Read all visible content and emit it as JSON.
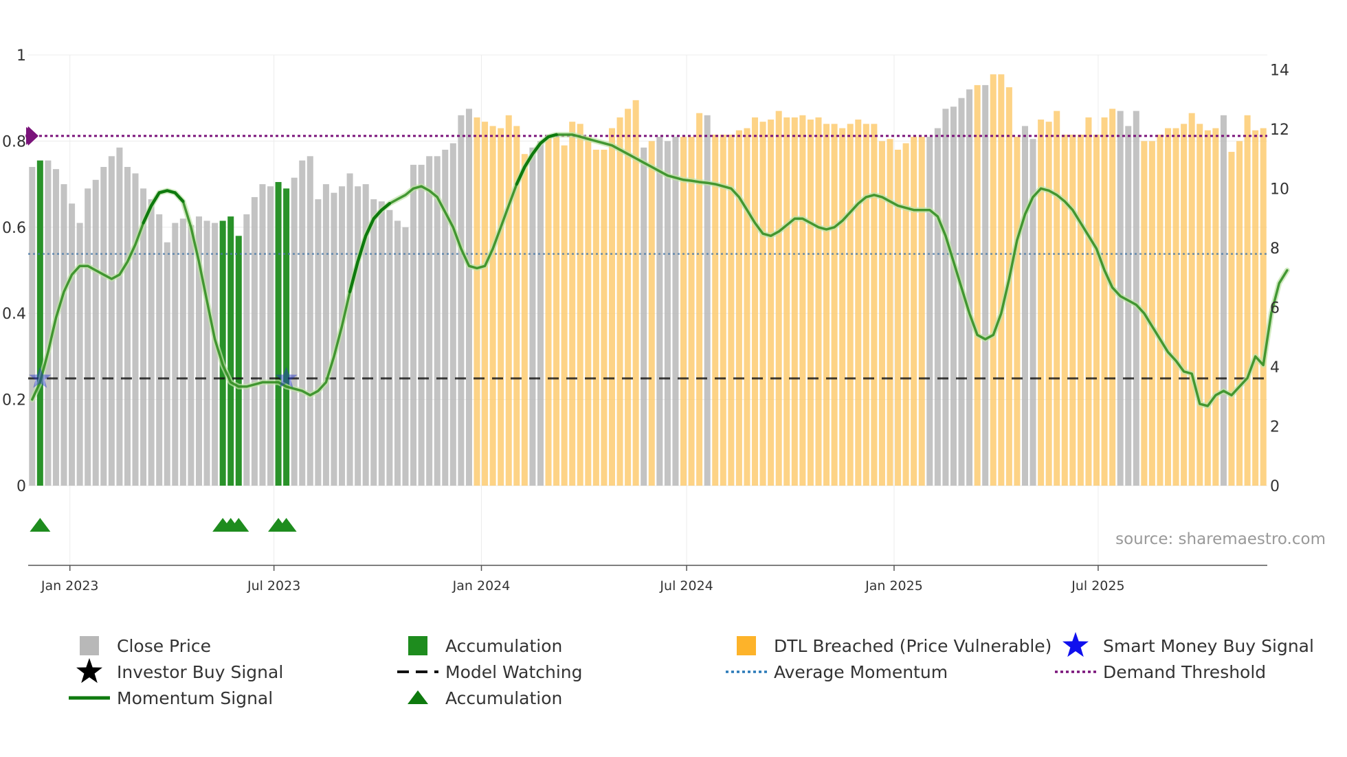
{
  "chart_data": {
    "type": "bar+line",
    "title": "",
    "source": "source: sharemaestro.com",
    "x_start": "2022-11-25",
    "x_end": "2025-11-28",
    "x_ticks": [
      "Jan 2023",
      "Jul 2023",
      "Jan 2024",
      "Jul 2024",
      "Jan 2025",
      "Jul 2025"
    ],
    "left_axis": {
      "ylim": [
        0,
        1
      ],
      "ticks": [
        "0",
        "0.2",
        "0.4",
        "0.6",
        "0.8",
        "1"
      ]
    },
    "right_axis": {
      "ylim": [
        0,
        14.5
      ],
      "ticks": [
        "0",
        "2",
        "4",
        "6",
        "8",
        "10",
        "12",
        "14"
      ]
    },
    "colors": {
      "close": "#b8b8b8",
      "accumulation": "#1e8c1e",
      "dtl": "#fcc868",
      "momentum": "#2a8a1a",
      "momentum_strong": "#0e7a0e",
      "average_momentum": "#4a7aa8",
      "demand_threshold": "#7a137a",
      "model_watching": "#111111",
      "smart_money": "#2233cc",
      "triangle": "#1e8c1e"
    },
    "close_price": [
      0.74,
      0.755,
      0.755,
      0.735,
      0.7,
      0.655,
      0.61,
      0.69,
      0.71,
      0.74,
      0.765,
      0.785,
      0.74,
      0.725,
      0.69,
      0.665,
      0.63,
      0.565,
      0.61,
      0.62,
      0.605,
      0.625,
      0.615,
      0.61,
      0.615,
      0.625,
      0.58,
      0.63,
      0.67,
      0.7,
      0.695,
      0.705,
      0.69,
      0.715,
      0.755,
      0.765,
      0.665,
      0.7,
      0.68,
      0.695,
      0.725,
      0.695,
      0.7,
      0.665,
      0.66,
      0.64,
      0.615,
      0.6,
      0.745,
      0.745,
      0.765,
      0.765,
      0.78,
      0.795,
      0.86,
      0.875,
      0.855,
      0.845,
      0.835,
      0.83,
      0.86,
      0.835,
      0.77,
      0.785,
      0.8,
      0.81,
      0.81,
      0.79,
      0.845,
      0.84,
      0.81,
      0.78,
      0.78,
      0.83,
      0.855,
      0.875,
      0.895,
      0.785,
      0.8,
      0.81,
      0.8,
      0.81,
      0.81,
      0.81,
      0.865,
      0.86,
      0.815,
      0.815,
      0.815,
      0.825,
      0.83,
      0.855,
      0.845,
      0.85,
      0.87,
      0.855,
      0.855,
      0.86,
      0.85,
      0.855,
      0.84,
      0.84,
      0.83,
      0.84,
      0.85,
      0.84,
      0.84,
      0.8,
      0.805,
      0.78,
      0.795,
      0.81,
      0.81,
      0.81,
      0.83,
      0.875,
      0.88,
      0.9,
      0.92,
      0.93,
      0.93,
      0.955,
      0.955,
      0.925,
      0.81,
      0.835,
      0.805,
      0.85,
      0.845,
      0.87,
      0.815,
      0.815,
      0.815,
      0.855,
      0.815,
      0.855,
      0.875,
      0.87,
      0.835,
      0.87,
      0.8,
      0.8,
      0.815,
      0.83,
      0.83,
      0.84,
      0.865,
      0.84,
      0.825,
      0.83,
      0.86,
      0.775,
      0.8,
      0.86,
      0.825,
      0.83
    ],
    "accumulation_idx": [
      1,
      24,
      25,
      26,
      31,
      32
    ],
    "dtl_ranges": [
      [
        55,
        63
      ],
      [
        65,
        155
      ]
    ],
    "gray_override_idx": [
      55,
      63,
      77,
      79,
      80,
      81,
      85,
      113,
      114,
      115,
      116,
      117,
      118,
      120,
      125,
      126,
      137,
      138,
      139,
      150
    ],
    "momentum": [
      0.2,
      0.24,
      0.31,
      0.39,
      0.45,
      0.49,
      0.51,
      0.51,
      0.5,
      0.49,
      0.48,
      0.49,
      0.52,
      0.56,
      0.61,
      0.65,
      0.68,
      0.685,
      0.68,
      0.66,
      0.6,
      0.52,
      0.43,
      0.34,
      0.28,
      0.24,
      0.23,
      0.23,
      0.235,
      0.24,
      0.24,
      0.24,
      0.23,
      0.225,
      0.22,
      0.21,
      0.22,
      0.24,
      0.3,
      0.37,
      0.45,
      0.52,
      0.58,
      0.62,
      0.64,
      0.655,
      0.665,
      0.675,
      0.69,
      0.695,
      0.685,
      0.67,
      0.635,
      0.6,
      0.55,
      0.51,
      0.505,
      0.51,
      0.55,
      0.6,
      0.65,
      0.7,
      0.74,
      0.77,
      0.795,
      0.81,
      0.815,
      0.815,
      0.815,
      0.81,
      0.805,
      0.8,
      0.795,
      0.79,
      0.78,
      0.77,
      0.76,
      0.75,
      0.74,
      0.73,
      0.72,
      0.715,
      0.71,
      0.708,
      0.705,
      0.703,
      0.7,
      0.695,
      0.69,
      0.67,
      0.64,
      0.61,
      0.585,
      0.58,
      0.59,
      0.605,
      0.62,
      0.62,
      0.61,
      0.6,
      0.595,
      0.6,
      0.615,
      0.635,
      0.655,
      0.67,
      0.675,
      0.67,
      0.66,
      0.65,
      0.645,
      0.64,
      0.64,
      0.64,
      0.625,
      0.58,
      0.52,
      0.46,
      0.4,
      0.35,
      0.34,
      0.35,
      0.4,
      0.48,
      0.57,
      0.63,
      0.67,
      0.69,
      0.685,
      0.675,
      0.66,
      0.64,
      0.61,
      0.58,
      0.55,
      0.5,
      0.46,
      0.44,
      0.43,
      0.42,
      0.4,
      0.37,
      0.34,
      0.31,
      0.29,
      0.265,
      0.26,
      0.19,
      0.185,
      0.21,
      0.22,
      0.21,
      0.23,
      0.25,
      0.3,
      0.28,
      0.4,
      0.47,
      0.5
    ],
    "momentum_strong_ranges": [
      [
        14,
        19
      ],
      [
        40,
        45
      ],
      [
        61,
        66
      ]
    ],
    "average_momentum": 0.538,
    "demand_threshold": 0.812,
    "model_watching": 0.249,
    "smart_money_idx": [
      1,
      32
    ],
    "triangle_idx": [
      1,
      24,
      25,
      26,
      31,
      32
    ],
    "legend": [
      {
        "label": "Close Price",
        "marker": "square-gray"
      },
      {
        "label": "Accumulation",
        "marker": "square-green"
      },
      {
        "label": "DTL Breached (Price Vulnerable)",
        "marker": "square-orange"
      },
      {
        "label": "Smart Money Buy Signal",
        "marker": "star-blue"
      },
      {
        "label": "Investor Buy Signal",
        "marker": "star-black"
      },
      {
        "label": "Model Watching",
        "marker": "dash-black"
      },
      {
        "label": "Average Momentum",
        "marker": "dot-blue"
      },
      {
        "label": "Demand Threshold",
        "marker": "dot-purple"
      },
      {
        "label": "Momentum Signal",
        "marker": "line-green"
      },
      {
        "label": "Accumulation",
        "marker": "triangle-green"
      }
    ]
  }
}
